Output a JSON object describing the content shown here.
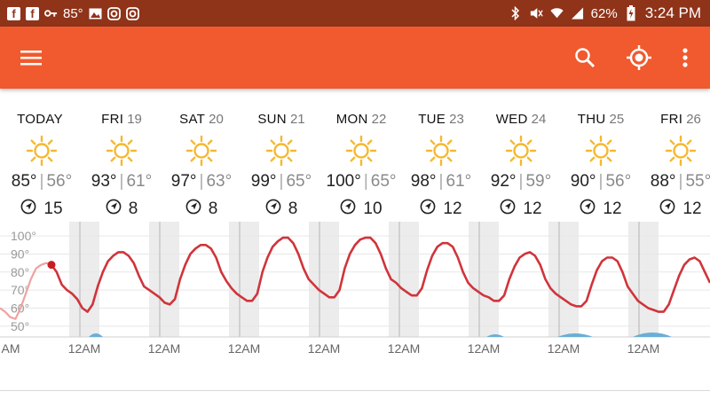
{
  "status_bar": {
    "left_icons": [
      "facebook-icon",
      "facebook-icon",
      "key-icon",
      "image-icon",
      "instagram-icon",
      "instagram-icon"
    ],
    "temp": "85°",
    "battery": "62%",
    "time": "3:24 PM"
  },
  "app_bar": {
    "menu_icon": "hamburger-menu-icon",
    "search_icon": "search-icon",
    "location_icon": "gps-locate-icon",
    "overflow_icon": "more-vertical-icon",
    "color": "#f05a2e"
  },
  "forecast": {
    "days": [
      {
        "name": "TODAY",
        "date": "",
        "hi": "85°",
        "lo": "56°",
        "wind": "15"
      },
      {
        "name": "FRI",
        "date": "19",
        "hi": "93°",
        "lo": "61°",
        "wind": "8"
      },
      {
        "name": "SAT",
        "date": "20",
        "hi": "97°",
        "lo": "63°",
        "wind": "8"
      },
      {
        "name": "SUN",
        "date": "21",
        "hi": "99°",
        "lo": "65°",
        "wind": "8"
      },
      {
        "name": "MON",
        "date": "22",
        "hi": "100°",
        "lo": "65°",
        "wind": "10"
      },
      {
        "name": "TUE",
        "date": "23",
        "hi": "98°",
        "lo": "61°",
        "wind": "12"
      },
      {
        "name": "WED",
        "date": "24",
        "hi": "92°",
        "lo": "59°",
        "wind": "12"
      },
      {
        "name": "THU",
        "date": "25",
        "hi": "90°",
        "lo": "56°",
        "wind": "12"
      },
      {
        "name": "FRI",
        "date": "26",
        "hi": "88°",
        "lo": "55°",
        "wind": "12"
      }
    ],
    "sun_color": "#f5b82e",
    "wind_icon": "wind-direction-icon"
  },
  "chart_data": {
    "type": "line",
    "y_ticks": [
      "100°",
      "90°",
      "80°",
      "70°",
      "60°",
      "50°"
    ],
    "y_tick_values": [
      100,
      90,
      80,
      70,
      60,
      50
    ],
    "ylim": [
      45,
      103
    ],
    "x_labels": [
      "AM",
      "12AM",
      "12AM",
      "12AM",
      "12AM",
      "12AM",
      "12AM",
      "12AM",
      "12AM"
    ],
    "series": [
      {
        "color": "#d0343b",
        "values": [
          60,
          58,
          55,
          54,
          60,
          68,
          76,
          82,
          84,
          85,
          84,
          80,
          73,
          70,
          68,
          65,
          60,
          58,
          62,
          72,
          80,
          86,
          89,
          91,
          91,
          89,
          85,
          78,
          72,
          70,
          68,
          66,
          63,
          62,
          65,
          76,
          84,
          90,
          93,
          95,
          95,
          93,
          88,
          80,
          75,
          71,
          68,
          66,
          64,
          64,
          68,
          80,
          88,
          94,
          97,
          99,
          99,
          96,
          90,
          82,
          76,
          73,
          70,
          68,
          66,
          66,
          70,
          82,
          90,
          95,
          98,
          99,
          99,
          96,
          90,
          82,
          76,
          74,
          71,
          69,
          67,
          67,
          71,
          81,
          89,
          94,
          96,
          96,
          94,
          88,
          80,
          74,
          71,
          69,
          67,
          66,
          64,
          64,
          67,
          76,
          83,
          88,
          90,
          91,
          89,
          84,
          76,
          71,
          68,
          66,
          64,
          62,
          61,
          61,
          64,
          73,
          81,
          86,
          88,
          88,
          86,
          80,
          72,
          68,
          64,
          62,
          60,
          59,
          58,
          58,
          62,
          70,
          78,
          84,
          87,
          88,
          86,
          80,
          74
        ]
      }
    ],
    "past_color": "#f0a2a0",
    "current_marker_color": "#c91c24",
    "night_shade_color": "#ececec",
    "midnight_line_color": "#bdbdbd",
    "precip_color": "#6aaed6",
    "precip_label": ""
  }
}
